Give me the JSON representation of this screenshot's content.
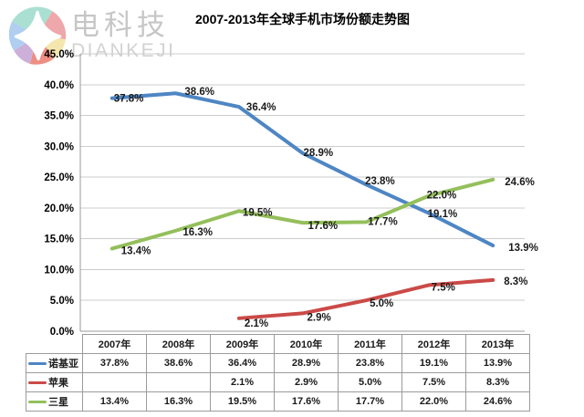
{
  "logo": {
    "name": "电科技",
    "latin": "DIANKEJI"
  },
  "chart_data": {
    "type": "line",
    "title": "2007-2013年全球手机市场份额走势图",
    "categories": [
      "2007年",
      "2008年",
      "2009年",
      "2010年",
      "2011年",
      "2012年",
      "2013年"
    ],
    "series": [
      {
        "name": "诺基亚",
        "color": "#4e86c4",
        "values": [
          37.8,
          38.6,
          36.4,
          28.9,
          23.8,
          19.1,
          13.9
        ],
        "label_offsets": [
          [
            2,
            0
          ],
          [
            10,
            -2
          ],
          [
            8,
            0
          ],
          [
            1,
            -1
          ],
          [
            -1,
            -4
          ],
          [
            -2,
            0
          ],
          [
            17,
            2
          ]
        ]
      },
      {
        "name": "苹果",
        "color": "#cb4a47",
        "values": [
          null,
          null,
          2.1,
          2.9,
          5.0,
          7.5,
          8.3
        ],
        "label_offsets": [
          null,
          null,
          [
            6,
            5
          ],
          [
            5,
            4
          ],
          [
            4,
            3
          ],
          [
            2,
            2
          ],
          [
            12,
            1
          ]
        ]
      },
      {
        "name": "三星",
        "color": "#94bf5b",
        "values": [
          13.4,
          16.3,
          19.5,
          17.6,
          17.7,
          22.0,
          24.6
        ],
        "label_offsets": [
          [
            10,
            2
          ],
          [
            8,
            1
          ],
          [
            4,
            1
          ],
          [
            6,
            3
          ],
          [
            2,
            -1
          ],
          [
            -3,
            -1
          ],
          [
            13,
            2
          ]
        ]
      }
    ],
    "ylim": [
      0,
      45
    ],
    "ytick_step": 5,
    "ytick_suffix": "%",
    "value_suffix": "%",
    "grid": true,
    "legend_position": "table-bottom",
    "colors": {
      "gridline": "#cccccc",
      "axis": "#9a9a9a",
      "label_text": "#1a1a1a"
    }
  }
}
